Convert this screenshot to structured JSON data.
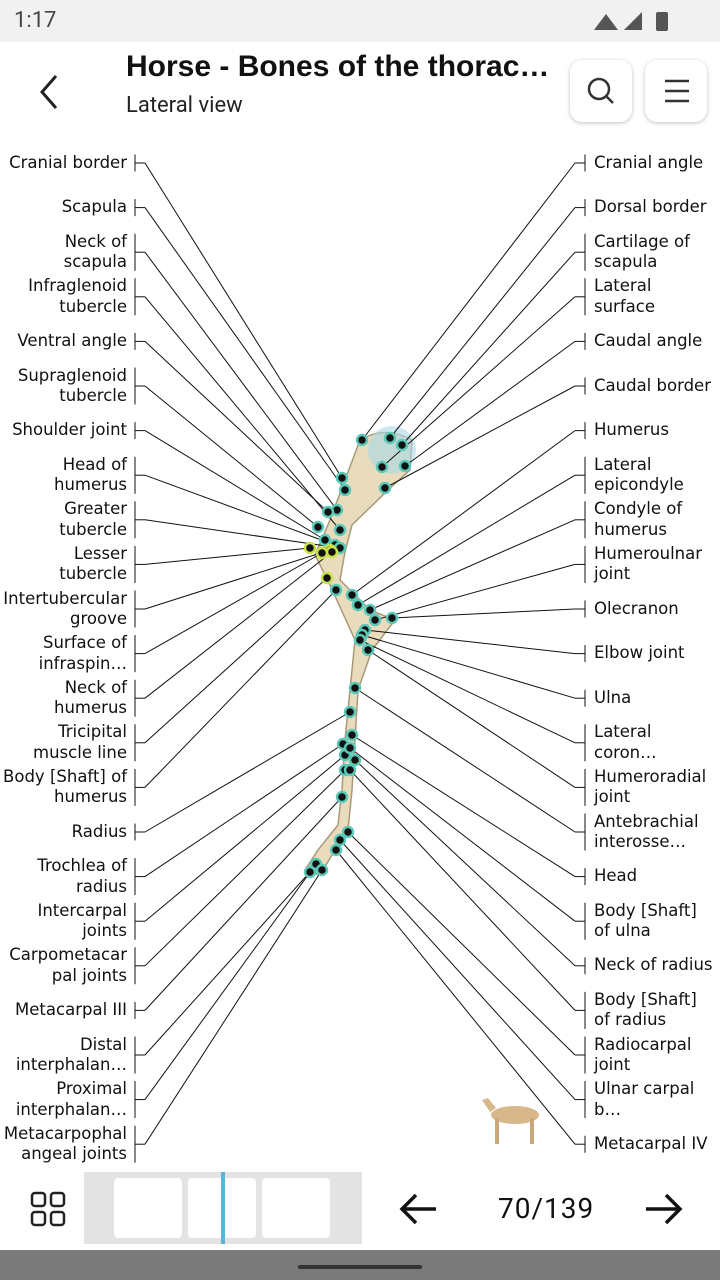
{
  "status_bar": {
    "time": "1:17"
  },
  "header": {
    "title": "Horse - Bones of the thorac…",
    "subtitle": "Lateral view"
  },
  "labels": {
    "left": [
      "Cranial border",
      "Scapula",
      "Neck of scapula",
      "Infraglenoid tubercle",
      "Ventral angle",
      "Supraglenoid tubercle",
      "Shoulder joint",
      "Head of humerus",
      "Greater tubercle",
      "Lesser tubercle",
      "Intertubercular groove",
      "Surface of infraspin…",
      "Neck of humerus",
      "Tricipital muscle line",
      "Body [Shaft] of humerus",
      "Radius",
      "Trochlea of radius",
      "Intercarpal joints",
      "Carpometacarpal joints",
      "Metacarpal III",
      "Distal interphalan…",
      "Proximal interphalan…",
      "Metacarpophalangeal joints"
    ],
    "right": [
      "Cranial angle",
      "Dorsal border",
      "Cartilage of scapula",
      "Lateral surface",
      "Caudal angle",
      "Caudal border",
      "Humerus",
      "Lateral epicondyle",
      "Condyle of humerus",
      "Humeroulnar joint",
      "Olecranon",
      "Elbow joint",
      "Ulna",
      "Lateral coron…",
      "Humeroradial joint",
      "Antebrachial interosse…",
      "Head",
      "Body [Shaft] of ulna",
      "Neck of radius",
      "Body [Shaft] of radius",
      "Radiocarpal joint",
      "Ulnar carpal b…",
      "Metacarpal IV"
    ]
  },
  "pager": {
    "page": "70/139"
  }
}
